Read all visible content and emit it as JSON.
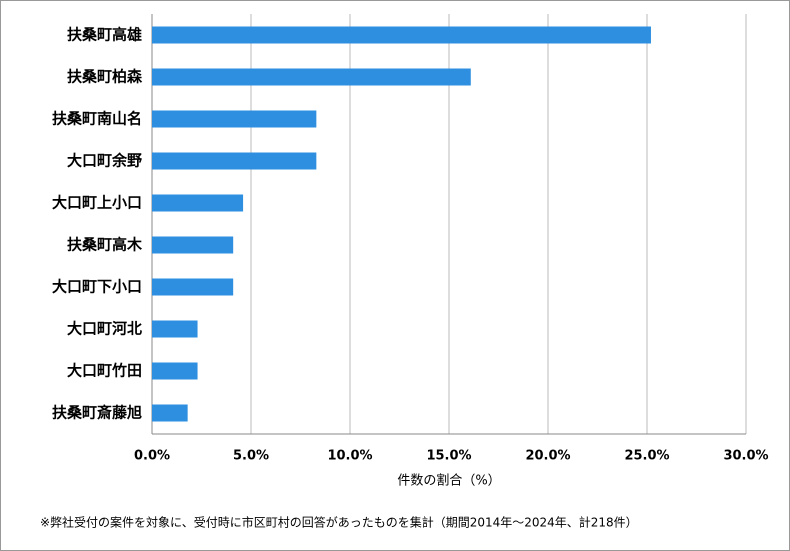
{
  "chart_data": {
    "type": "bar",
    "orientation": "horizontal",
    "categories": [
      "扶桑町高雄",
      "扶桑町柏森",
      "扶桑町南山名",
      "大口町余野",
      "大口町上小口",
      "扶桑町高木",
      "大口町下小口",
      "大口町河北",
      "大口町竹田",
      "扶桑町斎藤旭"
    ],
    "values": [
      25.2,
      16.1,
      8.3,
      8.3,
      4.6,
      4.1,
      4.1,
      2.3,
      2.3,
      1.8
    ],
    "color": "#2e8fe0",
    "xlim": [
      0,
      30
    ],
    "xticks": [
      {
        "value": 0,
        "label": "0.0%"
      },
      {
        "value": 5,
        "label": "5.0%"
      },
      {
        "value": 10,
        "label": "10.0%"
      },
      {
        "value": 15,
        "label": "15.0%"
      },
      {
        "value": 20,
        "label": "20.0%"
      },
      {
        "value": 25,
        "label": "25.0%"
      },
      {
        "value": 30,
        "label": "30.0%"
      }
    ],
    "x_label": "件数の割合（%）",
    "note": "※弊社受付の案件を対象に、受付時に市区町村の回答があったものを集計（期間2014年～2024年、計218件）",
    "grid": true
  }
}
